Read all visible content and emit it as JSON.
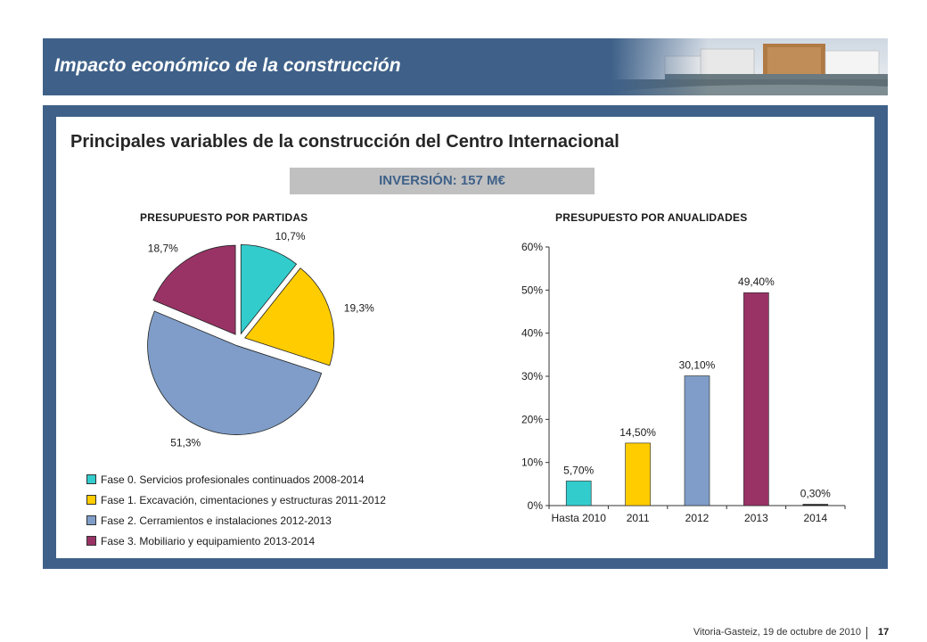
{
  "header": {
    "title": "Impacto económico de la construcción"
  },
  "content": {
    "title": "Principales variables de la construcción del Centro Internacional",
    "investment": "INVERSIÓN: 157 M€"
  },
  "colors": {
    "header_blue": "#3f6189",
    "fase0": "#33cccc",
    "fase1": "#ffcc00",
    "fase2": "#7f9dc8",
    "fase3": "#993366",
    "bar_2014": "#1a1a1a"
  },
  "chart_data": [
    {
      "type": "pie",
      "title": "PRESUPUESTO POR PARTIDAS",
      "slices": [
        {
          "label": "Fase 0. Servicios profesionales continuados 2008-2014",
          "value": 10.7,
          "value_label": "10,7%"
        },
        {
          "label": "Fase 1. Excavación, cimentaciones y estructuras 2011-2012",
          "value": 19.3,
          "value_label": "19,3%"
        },
        {
          "label": "Fase 2. Cerramientos e instalaciones 2012-2013",
          "value": 51.3,
          "value_label": "51,3%"
        },
        {
          "label": "Fase 3. Mobiliario y equipamiento 2013-2014",
          "value": 18.7,
          "value_label": "18,7%"
        }
      ],
      "legend_placement": "bottom"
    },
    {
      "type": "bar",
      "title": "PRESUPUESTO POR ANUALIDADES",
      "categories": [
        "Hasta 2010",
        "2011",
        "2012",
        "2013",
        "2014"
      ],
      "values": [
        5.7,
        14.5,
        30.1,
        49.4,
        0.3
      ],
      "value_labels": [
        "5,70%",
        "14,50%",
        "30,10%",
        "49,40%",
        "0,30%"
      ],
      "ylim": [
        0,
        60
      ],
      "yticks": [
        "0%",
        "10%",
        "20%",
        "30%",
        "40%",
        "50%",
        "60%"
      ],
      "grid": false
    }
  ],
  "footer": {
    "text": "Vitoria-Gasteiz, 19 de octubre de 2010",
    "page": "17"
  }
}
